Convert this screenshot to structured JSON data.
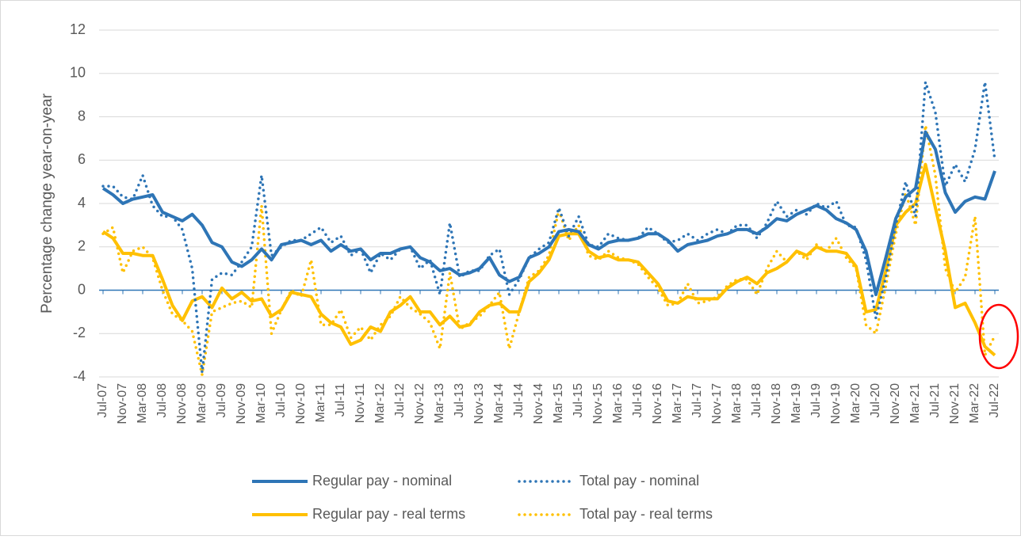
{
  "chart_data": {
    "type": "line",
    "y_axis_label": "Percentage change year-on-year",
    "categories": [
      "Jul-07",
      null,
      "Nov-07",
      null,
      "Mar-08",
      null,
      "Jul-08",
      null,
      "Nov-08",
      null,
      "Mar-09",
      null,
      "Jul-09",
      null,
      "Nov-09",
      null,
      "Mar-10",
      null,
      "Jul-10",
      null,
      "Nov-10",
      null,
      "Mar-11",
      null,
      "Jul-11",
      null,
      "Nov-11",
      null,
      "Mar-12",
      null,
      "Jul-12",
      null,
      "Nov-12",
      null,
      "Mar-13",
      null,
      "Jul-13",
      null,
      "Nov-13",
      null,
      "Mar-14",
      null,
      "Jul-14",
      null,
      "Nov-14",
      null,
      "Mar-15",
      null,
      "Jul-15",
      null,
      "Nov-15",
      null,
      "Mar-16",
      null,
      "Jul-16",
      null,
      "Nov-16",
      null,
      "Mar-17",
      null,
      "Jul-17",
      null,
      "Nov-17",
      null,
      "Mar-18",
      null,
      "Jul-18",
      null,
      "Nov-18",
      null,
      "Mar-19",
      null,
      "Jul-19",
      null,
      "Nov-19",
      null,
      "Mar-20",
      null,
      "Jul-20",
      null,
      "Nov-20",
      null,
      "Mar-21",
      null,
      "Jul-21",
      null,
      "Nov-21",
      null,
      "Mar-22",
      null,
      "Jul-22"
    ],
    "series": [
      {
        "name": "Regular pay - nominal",
        "color": "#2E75B6",
        "style": "solid",
        "values": [
          4.7,
          4.4,
          4.0,
          4.2,
          4.3,
          4.4,
          3.6,
          3.4,
          3.2,
          3.5,
          3.0,
          2.2,
          2.0,
          1.3,
          1.1,
          1.4,
          1.9,
          1.4,
          2.1,
          2.2,
          2.3,
          2.1,
          2.3,
          1.8,
          2.1,
          1.8,
          1.9,
          1.4,
          1.7,
          1.7,
          1.9,
          2.0,
          1.5,
          1.3,
          0.9,
          1.0,
          0.7,
          0.8,
          1.0,
          1.5,
          0.7,
          0.4,
          0.6,
          1.5,
          1.7,
          2.0,
          2.7,
          2.8,
          2.7,
          2.1,
          1.9,
          2.2,
          2.3,
          2.3,
          2.4,
          2.6,
          2.6,
          2.3,
          1.8,
          2.1,
          2.2,
          2.3,
          2.5,
          2.6,
          2.8,
          2.8,
          2.6,
          2.9,
          3.3,
          3.2,
          3.5,
          3.7,
          3.9,
          3.7,
          3.3,
          3.1,
          2.8,
          1.8,
          -0.2,
          1.5,
          3.3,
          4.3,
          4.7,
          7.3,
          6.5,
          4.5,
          3.6,
          4.1,
          4.3,
          4.2,
          5.5
        ]
      },
      {
        "name": "Total pay - nominal",
        "color": "#2E75B6",
        "style": "dotted",
        "values": [
          4.8,
          4.8,
          4.3,
          4.2,
          5.3,
          3.9,
          3.4,
          3.4,
          2.8,
          1.0,
          -3.8,
          0.5,
          0.8,
          0.7,
          1.3,
          2.0,
          5.3,
          1.6,
          2.0,
          2.3,
          2.3,
          2.6,
          2.9,
          2.2,
          2.5,
          1.6,
          1.9,
          0.8,
          1.7,
          1.4,
          1.9,
          2.0,
          1.0,
          1.4,
          -0.2,
          3.1,
          0.6,
          0.9,
          0.9,
          1.6,
          1.9,
          -0.2,
          0.5,
          1.5,
          1.9,
          2.2,
          3.8,
          2.5,
          3.4,
          2.1,
          2.0,
          2.6,
          2.4,
          2.3,
          2.4,
          2.9,
          2.6,
          2.2,
          2.3,
          2.6,
          2.3,
          2.6,
          2.8,
          2.6,
          3.0,
          3.0,
          2.4,
          3.1,
          4.1,
          3.4,
          3.7,
          3.5,
          4.0,
          3.8,
          4.1,
          3.0,
          2.9,
          1.4,
          -1.3,
          0.6,
          3.0,
          5.0,
          3.4,
          9.6,
          8.2,
          4.8,
          5.8,
          5.0,
          6.5,
          9.6,
          6.0
        ]
      },
      {
        "name": "Regular pay - real terms",
        "color": "#FFC000",
        "style": "solid",
        "values": [
          2.7,
          2.4,
          1.7,
          1.7,
          1.6,
          1.6,
          0.5,
          -0.7,
          -1.4,
          -0.5,
          -0.3,
          -0.8,
          0.1,
          -0.4,
          -0.1,
          -0.5,
          -0.4,
          -1.2,
          -0.9,
          -0.1,
          -0.2,
          -0.3,
          -1.1,
          -1.5,
          -1.7,
          -2.5,
          -2.3,
          -1.7,
          -1.9,
          -1.0,
          -0.7,
          -0.3,
          -1.0,
          -1.0,
          -1.6,
          -1.2,
          -1.7,
          -1.6,
          -1.0,
          -0.7,
          -0.6,
          -1.0,
          -1.0,
          0.4,
          0.8,
          1.4,
          2.5,
          2.6,
          2.6,
          1.8,
          1.5,
          1.6,
          1.4,
          1.4,
          1.3,
          0.8,
          0.3,
          -0.5,
          -0.6,
          -0.3,
          -0.4,
          -0.4,
          -0.4,
          0.1,
          0.4,
          0.6,
          0.3,
          0.8,
          1.0,
          1.3,
          1.8,
          1.6,
          2.0,
          1.8,
          1.8,
          1.7,
          1.1,
          -1.0,
          -0.9,
          0.9,
          3.0,
          3.6,
          4.0,
          5.8,
          3.8,
          1.8,
          -0.8,
          -0.6,
          -1.5,
          -2.6,
          -3.0
        ]
      },
      {
        "name": "Total pay - real terms",
        "color": "#FFC000",
        "style": "dotted",
        "values": [
          2.6,
          2.9,
          0.8,
          1.8,
          2.0,
          1.5,
          0.0,
          -1.1,
          -1.4,
          -1.9,
          -3.9,
          -1.0,
          -0.8,
          -0.6,
          -0.5,
          -0.8,
          3.9,
          -2.0,
          -0.9,
          0.0,
          -0.3,
          1.4,
          -1.6,
          -1.6,
          -0.9,
          -2.2,
          -1.7,
          -2.3,
          -1.6,
          -1.2,
          -0.3,
          -0.8,
          -1.1,
          -1.5,
          -2.7,
          0.8,
          -1.8,
          -1.5,
          -1.2,
          -0.7,
          -0.1,
          -2.7,
          -1.0,
          0.6,
          0.9,
          1.6,
          3.7,
          2.3,
          3.0,
          1.6,
          1.4,
          1.8,
          1.5,
          1.4,
          1.2,
          0.6,
          0.1,
          -0.7,
          -0.6,
          0.3,
          -0.6,
          -0.5,
          -0.3,
          0.2,
          0.5,
          0.5,
          -0.2,
          1.0,
          1.8,
          1.3,
          1.8,
          1.4,
          2.1,
          1.8,
          2.4,
          1.5,
          1.0,
          -1.6,
          -2.0,
          0.2,
          2.6,
          4.5,
          3.0,
          7.6,
          5.3,
          1.0,
          -0.1,
          0.6,
          3.4,
          -3.0,
          -2.1
        ]
      }
    ],
    "ylim": [
      -4,
      12
    ],
    "yticks": [
      -4,
      -2,
      0,
      2,
      4,
      6,
      8,
      10,
      12
    ],
    "grid": true,
    "legend": "bottom"
  }
}
